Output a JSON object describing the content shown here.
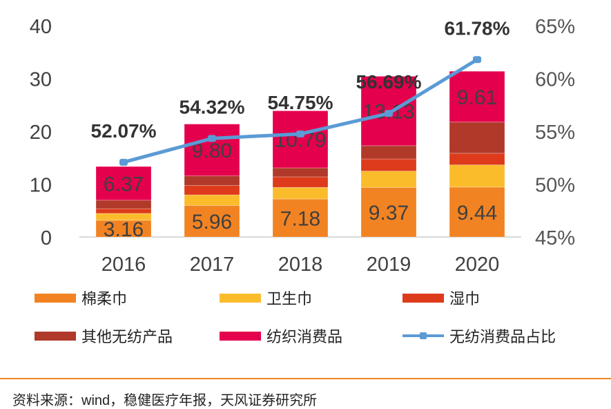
{
  "chart_data": {
    "type": "bar+line",
    "categories": [
      "2016",
      "2017",
      "2018",
      "2019",
      "2020"
    ],
    "series": [
      {
        "name": "棉柔巾",
        "type": "bar",
        "color": "#F28322",
        "values": [
          3.16,
          5.96,
          7.18,
          9.37,
          9.44
        ],
        "labels": [
          "3.16",
          "5.96",
          "7.18",
          "9.37",
          "9.44"
        ]
      },
      {
        "name": "卫生巾",
        "type": "bar",
        "color": "#FBBC2C",
        "values": [
          1.3,
          2.0,
          2.2,
          3.1,
          4.2
        ]
      },
      {
        "name": "湿巾",
        "type": "bar",
        "color": "#DD3B1B",
        "values": [
          0.9,
          1.8,
          2.0,
          2.3,
          2.2
        ]
      },
      {
        "name": "其他无纺产品",
        "type": "bar",
        "color": "#B0392A",
        "values": [
          1.6,
          1.8,
          1.7,
          2.5,
          5.9
        ]
      },
      {
        "name": "纺织消费品",
        "type": "bar",
        "color": "#E4004C",
        "values": [
          6.37,
          9.8,
          10.79,
          13.13,
          9.61
        ],
        "labels": [
          "6.37",
          "9.80",
          "10.79",
          "13.13",
          "9.61"
        ]
      },
      {
        "name": "无纺消费品占比",
        "type": "line",
        "axis": "right",
        "color": "#5B9BD5",
        "values": [
          52.07,
          54.32,
          54.75,
          56.69,
          61.78
        ],
        "labels": [
          "52.07%",
          "54.32%",
          "54.75%",
          "56.69%",
          "61.78%"
        ]
      }
    ],
    "y_left": {
      "min": 0,
      "max": 40,
      "ticks": [
        "0",
        "10",
        "20",
        "30",
        "40"
      ]
    },
    "y_right": {
      "min": 45,
      "max": 65,
      "ticks": [
        "45%",
        "50%",
        "55%",
        "60%",
        "65%"
      ]
    },
    "grid": false,
    "legend_position": "bottom"
  },
  "source": "资料来源：wind，稳健医疗年报，天风证券研究所"
}
